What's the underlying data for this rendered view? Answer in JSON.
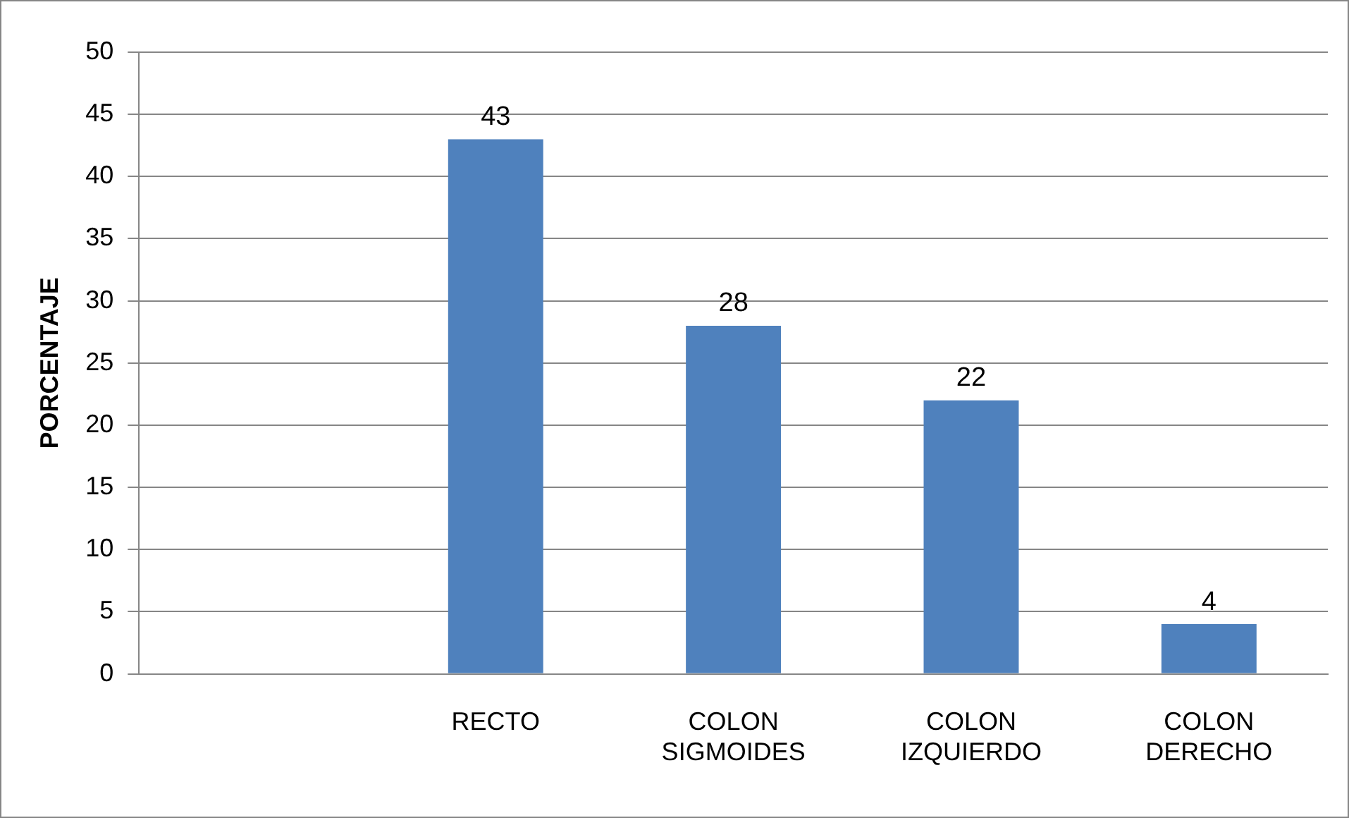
{
  "chart_data": {
    "type": "bar",
    "ylabel": "PORCENTAJE",
    "categories": [
      null,
      "RECTO",
      "COLON SIGMOIDES",
      "COLON IZQUIERDO",
      "COLON DERECHO"
    ],
    "values": [
      null,
      43,
      28,
      22,
      4
    ],
    "color": "#4f81bd",
    "ylim": [
      0,
      50
    ],
    "yticks": [
      0,
      5,
      10,
      15,
      20,
      25,
      30,
      35,
      40,
      45,
      50
    ],
    "grid": "y",
    "data_labels": true,
    "legend": false
  }
}
